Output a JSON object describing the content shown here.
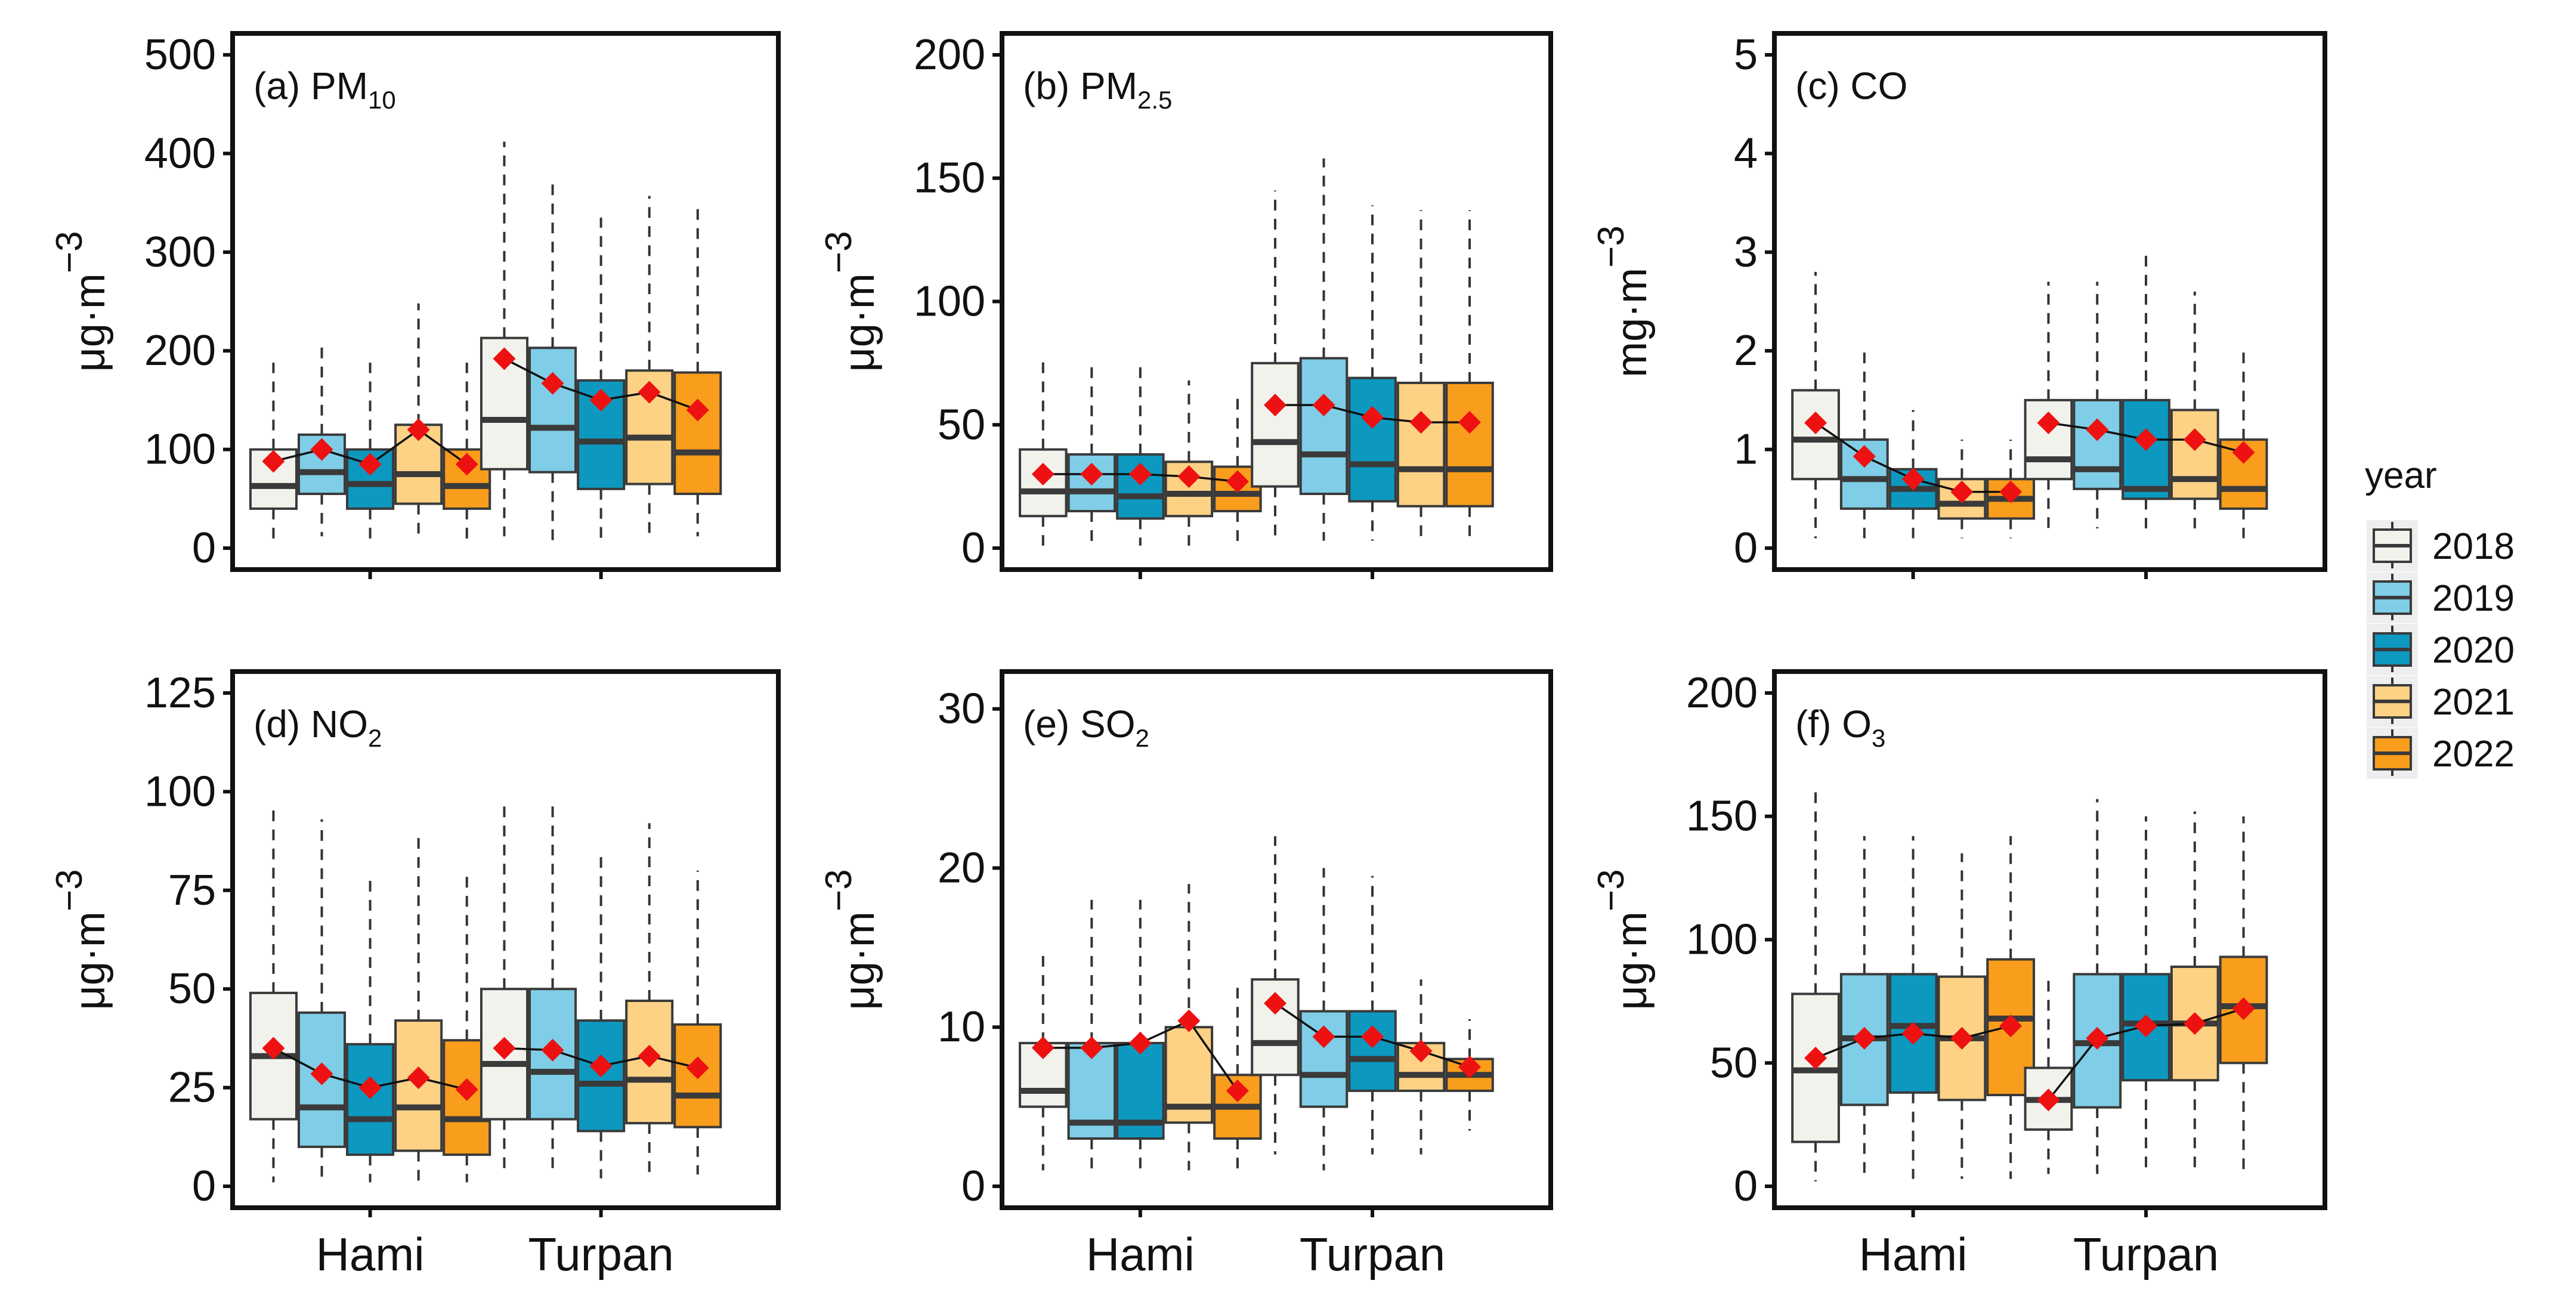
{
  "legend": {
    "title": "year",
    "entries": [
      {
        "label": "2018",
        "color": "#f2f2ed"
      },
      {
        "label": "2019",
        "color": "#7fcde6"
      },
      {
        "label": "2020",
        "color": "#0d98c0"
      },
      {
        "label": "2021",
        "color": "#fdd285"
      },
      {
        "label": "2022",
        "color": "#f99d1c"
      }
    ]
  },
  "colors": {
    "mean_marker": "#ee1111",
    "frame": "#111111",
    "median": "#3a3a3a",
    "whisker": "#333333"
  },
  "chart_data": [
    {
      "type": "box",
      "panel_label": "(a) PM",
      "panel_subscript": "10",
      "ylabel_base": "μg·m",
      "ylabel_exp": "−3",
      "ylim": [
        0,
        500
      ],
      "yticks": [
        0,
        100,
        200,
        300,
        400,
        500
      ],
      "categories": [
        "Hami",
        "Turpan"
      ],
      "years": [
        "2018",
        "2019",
        "2020",
        "2021",
        "2022"
      ],
      "boxes": {
        "Hami": [
          {
            "q1": 40,
            "median": 63,
            "q3": 100,
            "lower": 2,
            "upper": 188,
            "mean": 88
          },
          {
            "q1": 55,
            "median": 77,
            "q3": 115,
            "lower": 12,
            "upper": 210,
            "mean": 100
          },
          {
            "q1": 40,
            "median": 65,
            "q3": 100,
            "lower": 8,
            "upper": 188,
            "mean": 85
          },
          {
            "q1": 45,
            "median": 75,
            "q3": 125,
            "lower": 10,
            "upper": 248,
            "mean": 120
          },
          {
            "q1": 40,
            "median": 63,
            "q3": 100,
            "lower": 8,
            "upper": 188,
            "mean": 85
          }
        ],
        "Turpan": [
          {
            "q1": 80,
            "median": 130,
            "q3": 213,
            "lower": 12,
            "upper": 412,
            "mean": 192
          },
          {
            "q1": 77,
            "median": 122,
            "q3": 203,
            "lower": 8,
            "upper": 377,
            "mean": 167
          },
          {
            "q1": 60,
            "median": 108,
            "q3": 170,
            "lower": 5,
            "upper": 335,
            "mean": 150
          },
          {
            "q1": 65,
            "median": 112,
            "q3": 180,
            "lower": 8,
            "upper": 357,
            "mean": 158
          },
          {
            "q1": 55,
            "median": 97,
            "q3": 178,
            "lower": 12,
            "upper": 352,
            "mean": 140
          }
        ]
      }
    },
    {
      "type": "box",
      "panel_label": "(b) PM",
      "panel_subscript": "2.5",
      "ylabel_base": "μg·m",
      "ylabel_exp": "−3",
      "ylim": [
        0,
        200
      ],
      "yticks": [
        0,
        50,
        100,
        150,
        200
      ],
      "categories": [
        "Hami",
        "Turpan"
      ],
      "years": [
        "2018",
        "2019",
        "2020",
        "2021",
        "2022"
      ],
      "boxes": {
        "Hami": [
          {
            "q1": 13,
            "median": 23,
            "q3": 40,
            "lower": 1,
            "upper": 78,
            "mean": 30
          },
          {
            "q1": 15,
            "median": 23,
            "q3": 38,
            "lower": 2,
            "upper": 75,
            "mean": 30
          },
          {
            "q1": 12,
            "median": 21,
            "q3": 38,
            "lower": 1,
            "upper": 75,
            "mean": 30
          },
          {
            "q1": 13,
            "median": 22,
            "q3": 35,
            "lower": 1,
            "upper": 68,
            "mean": 29
          },
          {
            "q1": 15,
            "median": 22,
            "q3": 33,
            "lower": 2,
            "upper": 62,
            "mean": 27
          }
        ],
        "Turpan": [
          {
            "q1": 25,
            "median": 43,
            "q3": 75,
            "lower": 5,
            "upper": 145,
            "mean": 58
          },
          {
            "q1": 22,
            "median": 38,
            "q3": 77,
            "lower": 3,
            "upper": 158,
            "mean": 58
          },
          {
            "q1": 19,
            "median": 34,
            "q3": 69,
            "lower": 3,
            "upper": 139,
            "mean": 53
          },
          {
            "q1": 17,
            "median": 32,
            "q3": 67,
            "lower": 3,
            "upper": 137,
            "mean": 51
          },
          {
            "q1": 17,
            "median": 32,
            "q3": 67,
            "lower": 3,
            "upper": 137,
            "mean": 51
          }
        ]
      }
    },
    {
      "type": "box",
      "panel_label": "(c) CO",
      "panel_subscript": "",
      "ylabel_base": "mg·m",
      "ylabel_exp": "−3",
      "ylim": [
        0,
        5
      ],
      "yticks": [
        0,
        1,
        2,
        3,
        4,
        5
      ],
      "categories": [
        "Hami",
        "Turpan"
      ],
      "years": [
        "2018",
        "2019",
        "2020",
        "2021",
        "2022"
      ],
      "boxes": {
        "Hami": [
          {
            "q1": 0.7,
            "median": 1.1,
            "q3": 1.6,
            "lower": 0.1,
            "upper": 2.8,
            "mean": 1.27
          },
          {
            "q1": 0.4,
            "median": 0.7,
            "q3": 1.1,
            "lower": 0.1,
            "upper": 2.05,
            "mean": 0.93
          },
          {
            "q1": 0.4,
            "median": 0.6,
            "q3": 0.8,
            "lower": 0.1,
            "upper": 1.4,
            "mean": 0.7
          },
          {
            "q1": 0.3,
            "median": 0.45,
            "q3": 0.7,
            "lower": 0.1,
            "upper": 1.1,
            "mean": 0.57
          },
          {
            "q1": 0.3,
            "median": 0.5,
            "q3": 0.7,
            "lower": 0.1,
            "upper": 1.1,
            "mean": 0.57
          }
        ],
        "Turpan": [
          {
            "q1": 0.7,
            "median": 0.9,
            "q3": 1.5,
            "lower": 0.2,
            "upper": 2.7,
            "mean": 1.27
          },
          {
            "q1": 0.6,
            "median": 0.8,
            "q3": 1.5,
            "lower": 0.2,
            "upper": 2.7,
            "mean": 1.2
          },
          {
            "q1": 0.5,
            "median": 0.6,
            "q3": 1.5,
            "lower": 0.2,
            "upper": 3.0,
            "mean": 1.1
          },
          {
            "q1": 0.5,
            "median": 0.7,
            "q3": 1.4,
            "lower": 0.2,
            "upper": 2.6,
            "mean": 1.1
          },
          {
            "q1": 0.4,
            "median": 0.6,
            "q3": 1.1,
            "lower": 0.1,
            "upper": 2.05,
            "mean": 0.97
          }
        ]
      }
    },
    {
      "type": "box",
      "panel_label": "(d) NO",
      "panel_subscript": "2",
      "ylabel_base": "μg·m",
      "ylabel_exp": "−3",
      "ylim": [
        0,
        125
      ],
      "yticks": [
        0,
        25,
        50,
        75,
        100,
        125
      ],
      "categories": [
        "Hami",
        "Turpan"
      ],
      "years": [
        "2018",
        "2019",
        "2020",
        "2021",
        "2022"
      ],
      "boxes": {
        "Hami": [
          {
            "q1": 17,
            "median": 33,
            "q3": 49,
            "lower": 1,
            "upper": 97,
            "mean": 35
          },
          {
            "q1": 10,
            "median": 20,
            "q3": 44,
            "lower": 1,
            "upper": 93,
            "mean": 28.5
          },
          {
            "q1": 8,
            "median": 17,
            "q3": 36,
            "lower": 1,
            "upper": 78,
            "mean": 25
          },
          {
            "q1": 9,
            "median": 20,
            "q3": 42,
            "lower": 1,
            "upper": 90,
            "mean": 27.5
          },
          {
            "q1": 8,
            "median": 17,
            "q3": 37,
            "lower": 1,
            "upper": 79,
            "mean": 24.5
          }
        ],
        "Turpan": [
          {
            "q1": 17,
            "median": 31,
            "q3": 50,
            "lower": 3,
            "upper": 98,
            "mean": 35
          },
          {
            "q1": 17,
            "median": 29,
            "q3": 50,
            "lower": 3,
            "upper": 98,
            "mean": 34.5
          },
          {
            "q1": 14,
            "median": 26,
            "q3": 42,
            "lower": 2,
            "upper": 84,
            "mean": 30.5
          },
          {
            "q1": 16,
            "median": 27,
            "q3": 47,
            "lower": 3,
            "upper": 92,
            "mean": 33
          },
          {
            "q1": 15,
            "median": 23,
            "q3": 41,
            "lower": 3,
            "upper": 80,
            "mean": 30
          }
        ]
      }
    },
    {
      "type": "box",
      "panel_label": "(e) SO",
      "panel_subscript": "2",
      "ylabel_base": "μg·m",
      "ylabel_exp": "−3",
      "ylim": [
        0,
        31
      ],
      "yticks": [
        0,
        10,
        20,
        30
      ],
      "categories": [
        "Hami",
        "Turpan"
      ],
      "years": [
        "2018",
        "2019",
        "2020",
        "2021",
        "2022"
      ],
      "boxes": {
        "Hami": [
          {
            "q1": 5,
            "median": 6,
            "q3": 9,
            "lower": 1,
            "upper": 14.5,
            "mean": 8.7
          },
          {
            "q1": 3,
            "median": 4,
            "q3": 9,
            "lower": 1,
            "upper": 18,
            "mean": 8.7
          },
          {
            "q1": 3,
            "median": 4,
            "q3": 9,
            "lower": 1,
            "upper": 18,
            "mean": 9
          },
          {
            "q1": 4,
            "median": 5,
            "q3": 10,
            "lower": 1,
            "upper": 19,
            "mean": 10.4
          },
          {
            "q1": 3,
            "median": 5,
            "q3": 7,
            "lower": 1,
            "upper": 12.5,
            "mean": 6
          }
        ],
        "Turpan": [
          {
            "q1": 7,
            "median": 9,
            "q3": 13,
            "lower": 2,
            "upper": 22,
            "mean": 11.5
          },
          {
            "q1": 5,
            "median": 7,
            "q3": 11,
            "lower": 1,
            "upper": 20,
            "mean": 9.4
          },
          {
            "q1": 6,
            "median": 8,
            "q3": 11,
            "lower": 2,
            "upper": 19.5,
            "mean": 9.4
          },
          {
            "q1": 6,
            "median": 7,
            "q3": 9,
            "lower": 2,
            "upper": 13,
            "mean": 8.5
          },
          {
            "q1": 6,
            "median": 7,
            "q3": 8,
            "lower": 3.5,
            "upper": 10.5,
            "mean": 7.5
          }
        ]
      }
    },
    {
      "type": "box",
      "panel_label": "(f) O",
      "panel_subscript": "3",
      "ylabel_base": "μg·m",
      "ylabel_exp": "−3",
      "ylim": [
        0,
        200
      ],
      "yticks": [
        0,
        50,
        100,
        150,
        200
      ],
      "categories": [
        "Hami",
        "Turpan"
      ],
      "years": [
        "2018",
        "2019",
        "2020",
        "2021",
        "2022"
      ],
      "boxes": {
        "Hami": [
          {
            "q1": 18,
            "median": 47,
            "q3": 78,
            "lower": 2,
            "upper": 160,
            "mean": 52
          },
          {
            "q1": 33,
            "median": 60,
            "q3": 86,
            "lower": 3,
            "upper": 142,
            "mean": 60
          },
          {
            "q1": 38,
            "median": 65,
            "q3": 86,
            "lower": 3,
            "upper": 142,
            "mean": 62
          },
          {
            "q1": 35,
            "median": 60,
            "q3": 85,
            "lower": 3,
            "upper": 135,
            "mean": 60
          },
          {
            "q1": 37,
            "median": 68,
            "q3": 92,
            "lower": 3,
            "upper": 142,
            "mean": 65
          }
        ],
        "Turpan": [
          {
            "q1": 23,
            "median": 35,
            "q3": 48,
            "lower": 5,
            "upper": 85,
            "mean": 35
          },
          {
            "q1": 32,
            "median": 58,
            "q3": 86,
            "lower": 5,
            "upper": 157,
            "mean": 60
          },
          {
            "q1": 43,
            "median": 66,
            "q3": 86,
            "lower": 5,
            "upper": 150,
            "mean": 65
          },
          {
            "q1": 43,
            "median": 66,
            "q3": 89,
            "lower": 5,
            "upper": 152,
            "mean": 66
          },
          {
            "q1": 50,
            "median": 73,
            "q3": 93,
            "lower": 5,
            "upper": 150,
            "mean": 72
          }
        ]
      }
    }
  ]
}
